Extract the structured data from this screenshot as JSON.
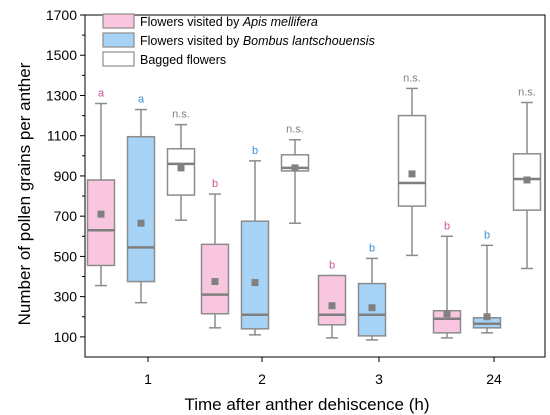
{
  "chart_data": {
    "type": "box",
    "xlabel": "Time after anther dehiscence (h)",
    "ylabel": "Number of pollen grains per anther",
    "categories": [
      "1",
      "2",
      "3",
      "24"
    ],
    "ylim": [
      0,
      1700
    ],
    "yticks": [
      100,
      300,
      500,
      700,
      900,
      1100,
      1300,
      1500,
      1700
    ],
    "series": [
      {
        "name_prefix": "Flowers visited by ",
        "name_species": "Apis mellifera",
        "fill": "#f9c6df",
        "stroke": "#8c8c8c",
        "label_color": "#d1509a",
        "boxes": [
          {
            "min": 355,
            "q1": 455,
            "median": 630,
            "q3": 880,
            "max": 1260,
            "mean": 710,
            "sig": "a"
          },
          {
            "min": 145,
            "q1": 215,
            "median": 310,
            "q3": 560,
            "max": 810,
            "mean": 375,
            "sig": "b"
          },
          {
            "min": 95,
            "q1": 160,
            "median": 210,
            "q3": 405,
            "max": 405,
            "mean": 255,
            "sig": "b"
          },
          {
            "min": 95,
            "q1": 120,
            "median": 190,
            "q3": 230,
            "max": 600,
            "mean": 215,
            "sig": "b"
          }
        ]
      },
      {
        "name_prefix": "Flowers visited by ",
        "name_species": "Bombus lantschouensis",
        "fill": "#a7d4f6",
        "stroke": "#8c8c8c",
        "label_color": "#3a8fd4",
        "boxes": [
          {
            "min": 270,
            "q1": 375,
            "median": 545,
            "q3": 1095,
            "max": 1230,
            "mean": 665,
            "sig": "a"
          },
          {
            "min": 110,
            "q1": 140,
            "median": 210,
            "q3": 675,
            "max": 975,
            "mean": 370,
            "sig": "b"
          },
          {
            "min": 85,
            "q1": 105,
            "median": 210,
            "q3": 365,
            "max": 490,
            "mean": 245,
            "sig": "b"
          },
          {
            "min": 120,
            "q1": 145,
            "median": 165,
            "q3": 195,
            "max": 555,
            "mean": 200,
            "sig": "b"
          }
        ]
      },
      {
        "name_prefix": "Bagged flowers",
        "name_species": "",
        "fill": "#ffffff",
        "stroke": "#8c8c8c",
        "label_color": "#808080",
        "boxes": [
          {
            "min": 680,
            "q1": 805,
            "median": 960,
            "q3": 1035,
            "max": 1155,
            "mean": 940,
            "sig": "n.s."
          },
          {
            "min": 665,
            "q1": 925,
            "median": 940,
            "q3": 1005,
            "max": 1080,
            "mean": 940,
            "sig": "n.s."
          },
          {
            "min": 505,
            "q1": 750,
            "median": 865,
            "q3": 1200,
            "max": 1335,
            "mean": 910,
            "sig": "n.s."
          },
          {
            "min": 440,
            "q1": 730,
            "median": 885,
            "q3": 1010,
            "max": 1265,
            "mean": 880,
            "sig": "n.s."
          }
        ]
      }
    ],
    "mean_marker_color": "#808080",
    "legend_position": "top-left"
  }
}
